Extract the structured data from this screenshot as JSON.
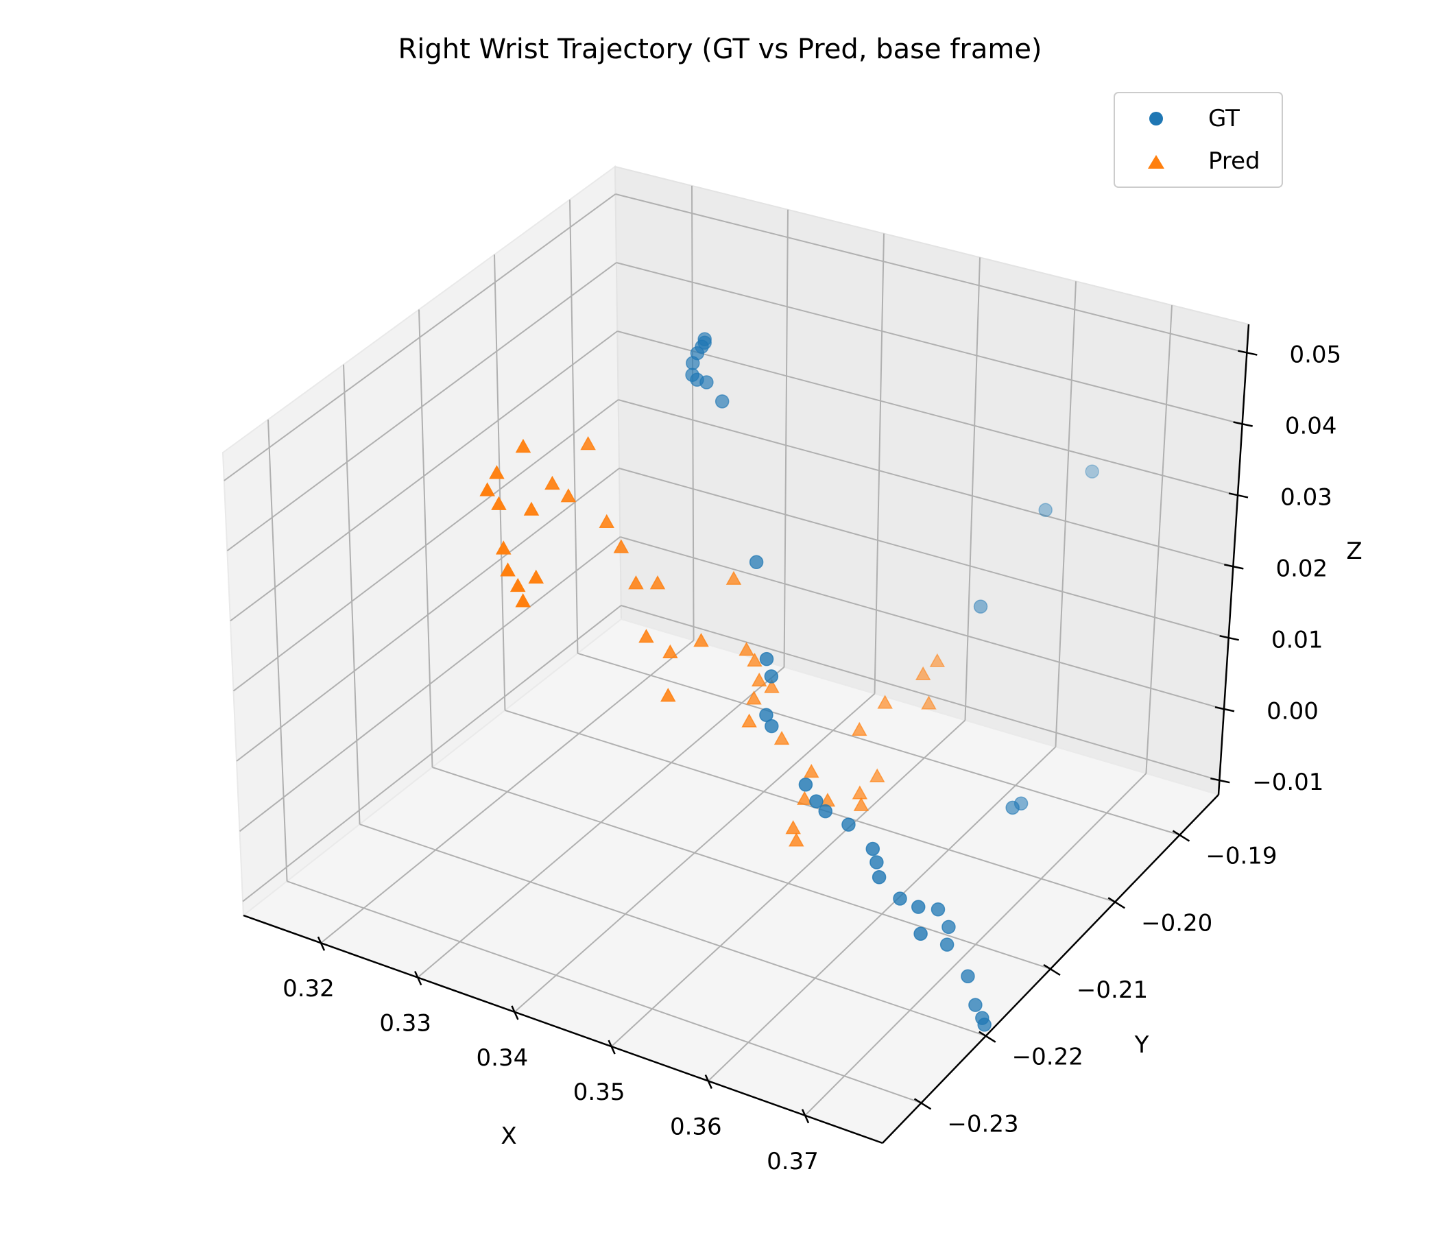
{
  "chart_data": {
    "type": "scatter",
    "title": "Right Wrist Trajectory (GT vs Pred, base frame)",
    "xlabel": "X",
    "ylabel": "Y",
    "zlabel": "Z",
    "x_ticks": [
      "0.32",
      "0.33",
      "0.34",
      "0.35",
      "0.36",
      "0.37"
    ],
    "y_ticks": [
      "−0.23",
      "−0.22",
      "−0.21",
      "−0.20",
      "−0.19"
    ],
    "z_ticks": [
      "−0.01",
      "0.00",
      "0.01",
      "0.02",
      "0.03",
      "0.04",
      "0.05"
    ],
    "xlim": [
      0.312,
      0.378
    ],
    "ylim": [
      -0.236,
      -0.184
    ],
    "zlim": [
      -0.012,
      0.054
    ],
    "grid": true,
    "legend_position": "top-right",
    "series": [
      {
        "name": "GT",
        "marker": "circle",
        "color": "#1f77b4",
        "points": [
          [
            0.3261,
            -0.1902,
            0.0392
          ],
          [
            0.3261,
            -0.1902,
            0.0387
          ],
          [
            0.3258,
            -0.1902,
            0.038
          ],
          [
            0.3254,
            -0.1903,
            0.037
          ],
          [
            0.325,
            -0.1904,
            0.0355
          ],
          [
            0.3251,
            -0.1906,
            0.034
          ],
          [
            0.3256,
            -0.1906,
            0.0335
          ],
          [
            0.3266,
            -0.1906,
            0.0335
          ],
          [
            0.3284,
            -0.1908,
            0.0316
          ],
          [
            0.3387,
            -0.1996,
            0.0202
          ],
          [
            0.3431,
            -0.204,
            0.012
          ],
          [
            0.3439,
            -0.2044,
            0.0102
          ],
          [
            0.3437,
            -0.2048,
            0.0049
          ],
          [
            0.3445,
            -0.2051,
            0.0039
          ],
          [
            0.3509,
            -0.2089,
            0.0017
          ],
          [
            0.3524,
            -0.2094,
            0.0004
          ],
          [
            0.3531,
            -0.209,
            -0.0011
          ],
          [
            0.3557,
            -0.2092,
            -0.0017
          ],
          [
            0.3599,
            -0.2115,
            -0.0012
          ],
          [
            0.3602,
            -0.2113,
            -0.0032
          ],
          [
            0.3614,
            -0.2126,
            -0.0036
          ],
          [
            0.3631,
            -0.2118,
            -0.0067
          ],
          [
            0.3662,
            -0.2135,
            -0.0049
          ],
          [
            0.3672,
            -0.2145,
            -0.0074
          ],
          [
            0.3678,
            -0.2128,
            -0.0052
          ],
          [
            0.3683,
            -0.2118,
            -0.0085
          ],
          [
            0.369,
            -0.213,
            -0.0096
          ],
          [
            0.3715,
            -0.2133,
            -0.0128
          ],
          [
            0.3726,
            -0.2136,
            -0.0162
          ],
          [
            0.3735,
            -0.2138,
            -0.0175
          ],
          [
            0.3739,
            -0.214,
            -0.0181
          ],
          [
            0.3682,
            -0.201,
            -0.001
          ],
          [
            0.37,
            -0.205,
            0.003
          ],
          [
            0.366,
            -0.189,
            0.034
          ],
          [
            0.362,
            -0.19,
            0.028
          ],
          [
            0.358,
            -0.1935,
            0.016
          ]
        ]
      },
      {
        "name": "Pred",
        "marker": "triangle",
        "color": "#ff7f0e",
        "points": [
          [
            0.317,
            -0.2031,
            0.0307
          ],
          [
            0.3152,
            -0.2044,
            0.0272
          ],
          [
            0.3148,
            -0.2052,
            0.0252
          ],
          [
            0.3155,
            -0.2046,
            0.023
          ],
          [
            0.3166,
            -0.2055,
            0.0178
          ],
          [
            0.3174,
            -0.206,
            0.0154
          ],
          [
            0.3189,
            -0.2066,
            0.0143
          ],
          [
            0.3198,
            -0.2071,
            0.0129
          ],
          [
            0.3206,
            -0.2063,
            0.016
          ],
          [
            0.3186,
            -0.2042,
            0.0232
          ],
          [
            0.3199,
            -0.203,
            0.0265
          ],
          [
            0.3211,
            -0.2024,
            0.0247
          ],
          [
            0.3206,
            -0.199,
            0.0292
          ],
          [
            0.3244,
            -0.2015,
            0.0216
          ],
          [
            0.3259,
            -0.2015,
            0.0186
          ],
          [
            0.3282,
            -0.2025,
            0.0152
          ],
          [
            0.3298,
            -0.2016,
            0.0151
          ],
          [
            0.3304,
            -0.204,
            0.0097
          ],
          [
            0.3324,
            -0.2033,
            0.0077
          ],
          [
            0.3347,
            -0.202,
            0.0092
          ],
          [
            0.3336,
            -0.2052,
            0.0036
          ],
          [
            0.3355,
            -0.1985,
            0.0154
          ],
          [
            0.3375,
            -0.1993,
            0.0067
          ],
          [
            0.338,
            -0.1988,
            0.0049
          ],
          [
            0.3387,
            -0.1998,
            0.0006
          ],
          [
            0.3391,
            -0.1996,
            0.0032
          ],
          [
            0.34,
            -0.199,
            0.0021
          ],
          [
            0.3397,
            -0.2018,
            -0.0005
          ],
          [
            0.3426,
            -0.201,
            -0.0025
          ],
          [
            0.3469,
            -0.2025,
            -0.0041
          ],
          [
            0.3473,
            -0.204,
            -0.0065
          ],
          [
            0.3494,
            -0.2035,
            -0.0063
          ],
          [
            0.3475,
            -0.2059,
            -0.0089
          ],
          [
            0.348,
            -0.2061,
            -0.0103
          ],
          [
            0.3521,
            -0.2025,
            -0.005
          ],
          [
            0.3527,
            -0.2031,
            -0.0059
          ],
          [
            0.3532,
            -0.2015,
            -0.003
          ],
          [
            0.3548,
            -0.1952,
            0.0084
          ],
          [
            0.3553,
            -0.197,
            0.0042
          ],
          [
            0.3539,
            -0.196,
            0.0069
          ],
          [
            0.352,
            -0.1989,
            0.0047
          ],
          [
            0.3507,
            -0.2008,
            0.002
          ]
        ]
      }
    ]
  }
}
